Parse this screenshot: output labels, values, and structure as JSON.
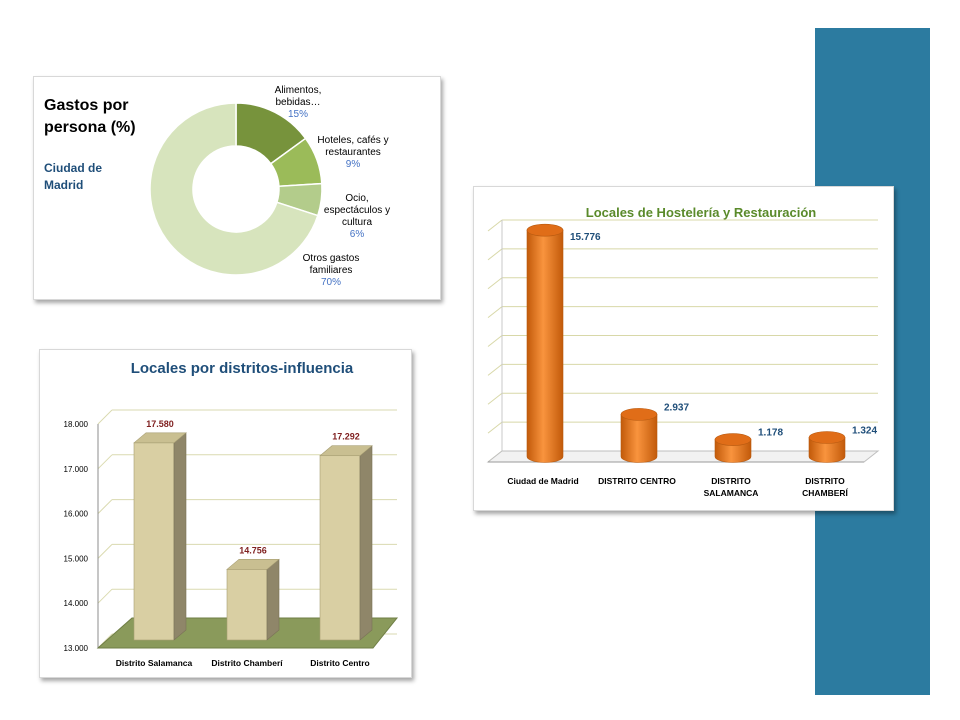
{
  "chart_data": [
    {
      "type": "pie",
      "title": "Gastos por persona (%)",
      "subtitle": "Ciudad de Madrid",
      "slices": [
        {
          "label": "Alimentos, bebidas…",
          "value": 15,
          "value_label": "15%",
          "color": "#77933c"
        },
        {
          "label": "Hoteles, cafés y restaurantes",
          "value": 9,
          "value_label": "9%",
          "color": "#9bbb59"
        },
        {
          "label": "Ocio, espectáculos y cultura",
          "value": 6,
          "value_label": "6%",
          "color": "#b3cc8b"
        },
        {
          "label": "Otros gastos familiares",
          "value": 70,
          "value_label": "70%",
          "color": "#d7e4bd"
        }
      ]
    },
    {
      "type": "bar",
      "title": "Locales de Hostelería y Restauración",
      "categories": [
        "Ciudad de Madrid",
        "DISTRITO CENTRO",
        "DISTRITO SALAMANCA",
        "DISTRITO CHAMBERÍ"
      ],
      "values": [
        15776,
        2937,
        1178,
        1324
      ],
      "value_labels": [
        "15.776",
        "2.937",
        "1.178",
        "1.324"
      ],
      "ylim": [
        0,
        16000
      ],
      "grid": true,
      "color": "#f58220"
    },
    {
      "type": "bar",
      "title": "Locales por distritos-influencia",
      "categories": [
        "Distrito Salamanca",
        "Distrito Chamberí",
        "Distrito Centro"
      ],
      "values": [
        17580,
        14756,
        17292
      ],
      "value_labels": [
        "17.580",
        "14.756",
        "17.292"
      ],
      "ylim": [
        13000,
        18000
      ],
      "yticks": [
        "13.000",
        "14.000",
        "15.000",
        "16.000",
        "17.000",
        "18.000"
      ],
      "grid": true,
      "color": "#d9cfa3"
    }
  ]
}
